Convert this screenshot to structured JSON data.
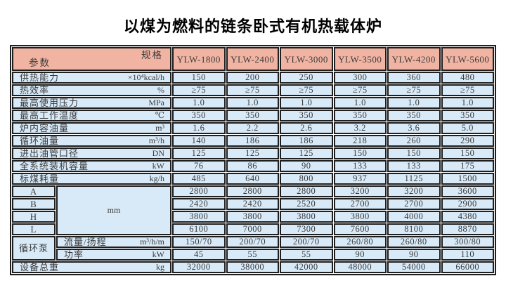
{
  "title": "以煤为燃料的链条卧式有机热载体炉",
  "colors": {
    "header_bg": "#f1b4a3",
    "row_bg": "#d8eaf8",
    "border": "#1f1f1f"
  },
  "table": {
    "corner": {
      "top_right": "规格",
      "bottom_left": "参数"
    },
    "models": [
      "YLW-1800",
      "YLW-2400",
      "YLW-3000",
      "YLW-3500",
      "YLW-4200",
      "YLW-5600"
    ],
    "rows": [
      {
        "label": "供热能力",
        "unit": "×10⁴kcal/h",
        "values": [
          "150",
          "200",
          "250",
          "300",
          "360",
          "480"
        ]
      },
      {
        "label": "热效率",
        "unit": "%",
        "values": [
          "≥75",
          "≥75",
          "≥75",
          "≥75",
          "≥75",
          "≥75"
        ]
      },
      {
        "label": "最高使用压力",
        "unit": "MPa",
        "values": [
          "1.0",
          "1.0",
          "1.0",
          "1.0",
          "1.0",
          "1.0"
        ]
      },
      {
        "label": "最高工作温度",
        "unit": "℃",
        "values": [
          "350",
          "350",
          "350",
          "350",
          "350",
          "350"
        ]
      },
      {
        "label": "炉内容油量",
        "unit": "m³",
        "values": [
          "1.6",
          "2.2",
          "2.6",
          "3.2",
          "3.6",
          "5.0"
        ]
      },
      {
        "label": "循环油量",
        "unit": "m³/h",
        "values": [
          "140",
          "186",
          "186",
          "218",
          "260",
          "290"
        ]
      },
      {
        "label": "进出油管口径",
        "unit": "DN",
        "values": [
          "125",
          "125",
          "125",
          "150",
          "150",
          "150"
        ]
      },
      {
        "label": "全系统装机容量",
        "unit": "kW",
        "values": [
          "76",
          "86",
          "90",
          "133",
          "133",
          "175"
        ]
      },
      {
        "label": "标煤耗量",
        "unit": "kg/h",
        "values": [
          "485",
          "640",
          "800",
          "937",
          "1125",
          "1500"
        ]
      }
    ],
    "dimension_rows": {
      "unit": "mm",
      "rows": [
        {
          "label": "A",
          "values": [
            "2800",
            "2800",
            "2800",
            "3200",
            "3200",
            "3600"
          ]
        },
        {
          "label": "B",
          "values": [
            "2420",
            "2420",
            "2520",
            "2700",
            "2700",
            "2900"
          ]
        },
        {
          "label": "H",
          "values": [
            "3800",
            "3800",
            "3800",
            "3800",
            "4000",
            "4380"
          ]
        },
        {
          "label": "L",
          "values": [
            "6100",
            "7000",
            "7300",
            "7600",
            "8100",
            "8870"
          ]
        }
      ]
    },
    "pump_rows": {
      "group_label": "循环泵",
      "rows": [
        {
          "label": "流量/扬程",
          "unit": "m³/h/m",
          "values": [
            "150/70",
            "200/70",
            "200/70",
            "260/80",
            "260/80",
            "300/80"
          ]
        },
        {
          "label": "功率",
          "unit": "kW",
          "values": [
            "45",
            "55",
            "55",
            "90",
            "90",
            "110"
          ]
        }
      ]
    },
    "total_row": {
      "label": "设备总重",
      "unit": "kg",
      "values": [
        "32000",
        "38000",
        "42000",
        "48000",
        "54000",
        "66000"
      ]
    }
  }
}
